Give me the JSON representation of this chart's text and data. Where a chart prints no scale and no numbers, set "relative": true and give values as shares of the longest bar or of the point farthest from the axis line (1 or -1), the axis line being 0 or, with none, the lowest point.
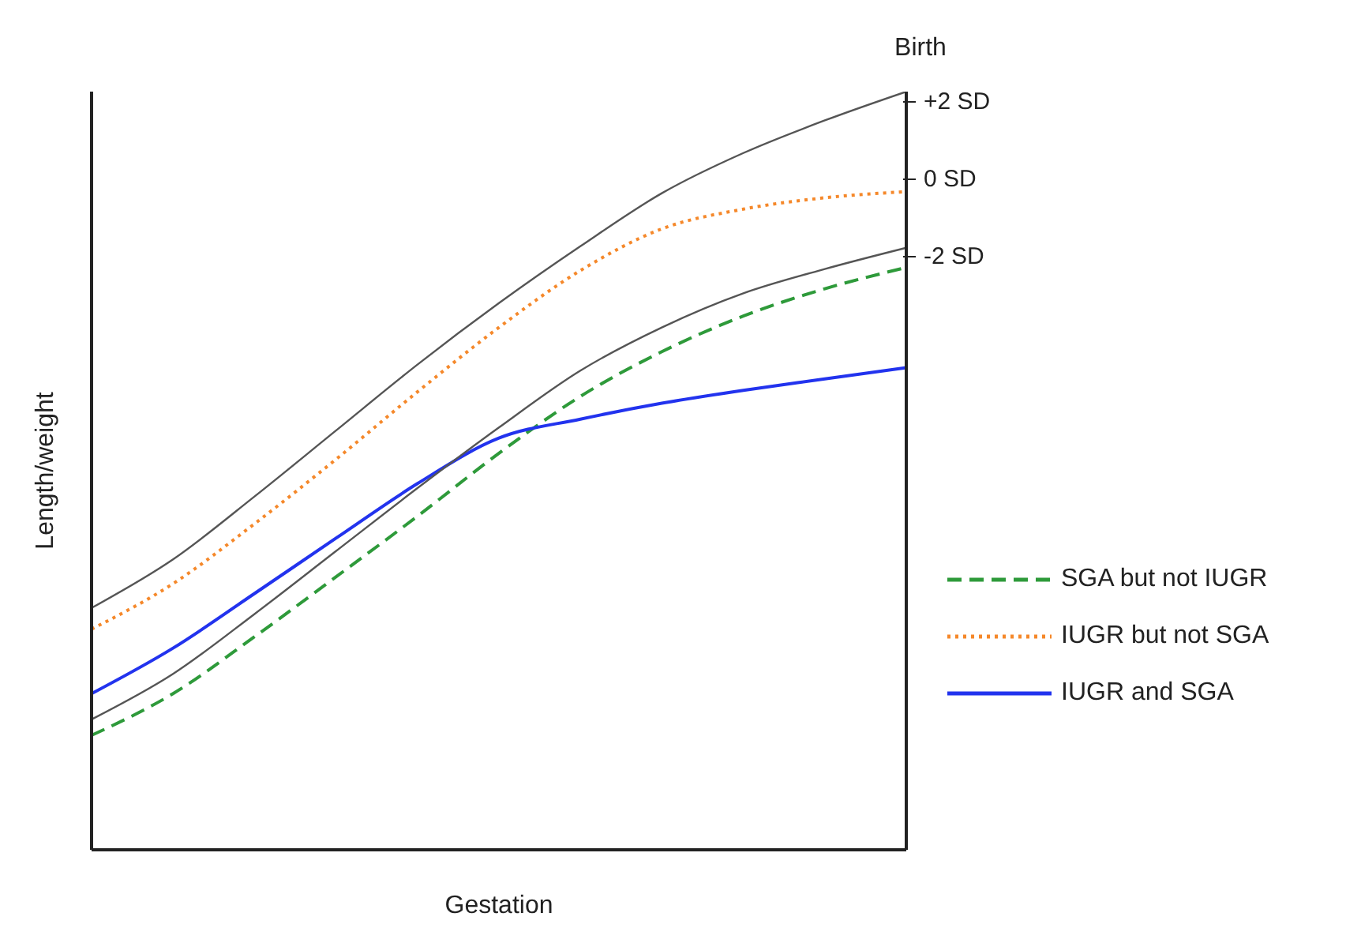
{
  "chart_data": {
    "type": "line",
    "relative": true,
    "xlabel": "Gestation",
    "ylabel": "Length/weight",
    "categories": [
      null,
      null,
      null,
      null,
      null,
      null,
      null,
      null,
      null,
      null,
      null
    ],
    "series": [
      {
        "name": "SGA but not IUGR",
        "color": "#2e9a3a",
        "line_style": "dashed",
        "values": [
          0.151,
          0.206,
          0.281,
          0.36,
          0.44,
          0.523,
          0.598,
          0.657,
          0.704,
          0.74,
          0.768
        ]
      },
      {
        "name": "IUGR but not SGA",
        "color": "#f5882a",
        "line_style": "dotted",
        "values": [
          0.291,
          0.351,
          0.43,
          0.515,
          0.604,
          0.689,
          0.764,
          0.819,
          0.845,
          0.86,
          0.868
        ]
      },
      {
        "name": "IUGR and SGA",
        "color": "#2233ee",
        "line_style": "solid",
        "values": [
          0.206,
          0.266,
          0.338,
          0.411,
          0.483,
          0.543,
          0.568,
          0.589,
          0.606,
          0.621,
          0.636
        ]
      },
      {
        "color": "#555555",
        "line_style": "solid",
        "values": [
          0.319,
          0.383,
          0.466,
          0.553,
          0.64,
          0.721,
          0.796,
          0.866,
          0.919,
          0.962,
          1
        ]
      },
      {
        "color": "#555555",
        "line_style": "solid",
        "values": [
          0.172,
          0.232,
          0.311,
          0.394,
          0.477,
          0.557,
          0.632,
          0.689,
          0.734,
          0.766,
          0.794
        ]
      }
    ],
    "annotations": [
      "Birth",
      "+2 SD",
      "0 SD",
      "-2 SD"
    ],
    "legend": "right",
    "grid": false,
    "marker": "none"
  }
}
